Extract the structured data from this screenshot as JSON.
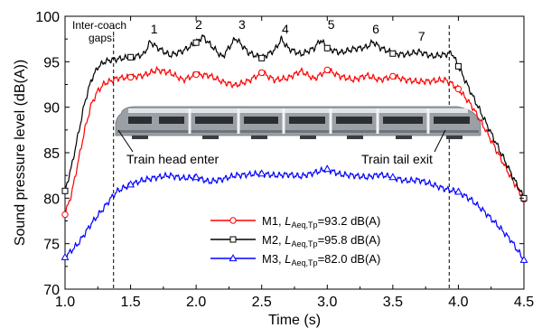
{
  "chart_data": {
    "type": "line",
    "xlabel": "Time (s)",
    "ylabel": "Sound pressure level (dB(A))",
    "xlim": [
      1.0,
      4.5
    ],
    "ylim": [
      70,
      100
    ],
    "xticks": [
      1.0,
      1.5,
      2.0,
      2.5,
      3.0,
      3.5,
      4.0,
      4.5
    ],
    "xtick_labels": [
      "1.0",
      "1.5",
      "2.0",
      "2.5",
      "3.0",
      "3.5",
      "4.0",
      "4.5"
    ],
    "yticks": [
      70,
      75,
      80,
      85,
      90,
      95,
      100
    ],
    "ytick_labels": [
      "70",
      "75",
      "80",
      "85",
      "90",
      "95",
      "100"
    ],
    "grid": false,
    "legend_position": "lower-right",
    "series": [
      {
        "name": "M1",
        "legend_label": {
          "prefix": "M1,  ",
          "symbol": "L",
          "subscript": "Aeq,Tp",
          "suffix": "=93.2 dB(A)"
        },
        "color": "#ff0000",
        "marker": "circle",
        "markers_x": [
          1.0,
          1.5,
          2.0,
          2.5,
          3.0,
          3.5,
          4.0,
          4.5
        ],
        "x": [
          1.0,
          1.05,
          1.1,
          1.15,
          1.2,
          1.25,
          1.3,
          1.35,
          1.4,
          1.5,
          1.6,
          1.7,
          1.8,
          1.9,
          2.0,
          2.1,
          2.2,
          2.3,
          2.4,
          2.5,
          2.6,
          2.7,
          2.8,
          2.9,
          3.0,
          3.1,
          3.2,
          3.3,
          3.4,
          3.5,
          3.6,
          3.7,
          3.8,
          3.9,
          3.95,
          4.0,
          4.1,
          4.2,
          4.3,
          4.4,
          4.5
        ],
        "y": [
          78.2,
          80.5,
          84.0,
          87.5,
          90.3,
          91.8,
          92.6,
          92.9,
          93.2,
          93.3,
          93.5,
          94.1,
          93.8,
          93.0,
          93.6,
          93.5,
          92.8,
          92.4,
          92.9,
          93.8,
          93.0,
          93.2,
          94.0,
          93.1,
          94.1,
          93.4,
          93.0,
          93.5,
          93.0,
          93.4,
          93.0,
          92.8,
          92.9,
          93.0,
          92.6,
          92.0,
          90.2,
          87.7,
          85.0,
          82.3,
          79.9
        ]
      },
      {
        "name": "M2",
        "legend_label": {
          "prefix": "M2,  ",
          "symbol": "L",
          "subscript": "Aeq,Tp",
          "suffix": "=95.8 dB(A)"
        },
        "color": "#000000",
        "marker": "square",
        "markers_x": [
          1.0,
          1.5,
          2.0,
          2.5,
          3.0,
          3.5,
          4.0,
          4.5
        ],
        "x": [
          1.0,
          1.05,
          1.1,
          1.15,
          1.2,
          1.25,
          1.3,
          1.35,
          1.4,
          1.5,
          1.6,
          1.65,
          1.7,
          1.8,
          1.9,
          2.0,
          2.05,
          2.1,
          2.2,
          2.3,
          2.4,
          2.5,
          2.6,
          2.65,
          2.7,
          2.8,
          2.9,
          2.95,
          3.0,
          3.1,
          3.2,
          3.3,
          3.35,
          3.4,
          3.5,
          3.6,
          3.7,
          3.8,
          3.9,
          3.95,
          4.0,
          4.1,
          4.2,
          4.3,
          4.4,
          4.5
        ],
        "y": [
          80.8,
          83.5,
          87.0,
          90.5,
          93.0,
          94.4,
          95.0,
          95.2,
          95.3,
          95.5,
          95.8,
          97.2,
          96.6,
          95.7,
          96.2,
          97.1,
          97.8,
          97.0,
          95.5,
          97.6,
          96.0,
          95.4,
          96.3,
          97.5,
          96.5,
          95.8,
          96.5,
          97.4,
          96.5,
          96.0,
          96.4,
          96.6,
          97.2,
          96.6,
          95.9,
          95.8,
          96.1,
          95.6,
          95.8,
          96.0,
          94.5,
          91.5,
          88.6,
          85.7,
          82.8,
          80.0
        ]
      },
      {
        "name": "M3",
        "legend_label": {
          "prefix": "M3,  ",
          "symbol": "L",
          "subscript": "Aeq,Tp",
          "suffix": "=82.0 dB(A)"
        },
        "color": "#0000ff",
        "marker": "triangle",
        "markers_x": [
          1.0,
          1.5,
          2.0,
          2.5,
          3.0,
          3.5,
          4.0,
          4.5
        ],
        "x": [
          1.0,
          1.1,
          1.2,
          1.3,
          1.35,
          1.4,
          1.5,
          1.6,
          1.7,
          1.8,
          1.9,
          2.0,
          2.1,
          2.2,
          2.3,
          2.4,
          2.5,
          2.6,
          2.7,
          2.8,
          2.9,
          3.0,
          3.1,
          3.2,
          3.3,
          3.4,
          3.5,
          3.6,
          3.7,
          3.8,
          3.9,
          4.0,
          4.1,
          4.2,
          4.3,
          4.4,
          4.5
        ],
        "y": [
          73.5,
          75.0,
          77.2,
          79.0,
          80.0,
          80.8,
          81.5,
          82.0,
          82.3,
          82.5,
          82.2,
          82.3,
          81.8,
          82.1,
          82.5,
          82.6,
          82.7,
          82.5,
          82.6,
          82.4,
          82.8,
          83.2,
          82.6,
          82.5,
          82.3,
          82.6,
          82.3,
          81.9,
          82.0,
          81.5,
          81.0,
          80.7,
          79.8,
          78.5,
          77.0,
          75.4,
          73.2
        ]
      }
    ],
    "vlines": [
      1.37,
      3.93
    ],
    "annotations": {
      "gaps_title_line1": "Inter-coach",
      "gaps_title_line2": "gaps:",
      "gap_labels": [
        {
          "text": "1",
          "x": 1.68,
          "y": 98.1
        },
        {
          "text": "2",
          "x": 2.02,
          "y": 98.6
        },
        {
          "text": "3",
          "x": 2.35,
          "y": 98.6
        },
        {
          "text": "4",
          "x": 2.68,
          "y": 98.1
        },
        {
          "text": "5",
          "x": 3.03,
          "y": 98.6
        },
        {
          "text": "6",
          "x": 3.37,
          "y": 98.1
        },
        {
          "text": "7",
          "x": 3.72,
          "y": 97.3
        }
      ],
      "train_head_label": "Train head enter",
      "train_tail_label": "Train tail exit"
    }
  },
  "colors": {
    "train_body": "#9aa0a6",
    "train_highlight": "#e2e5e8",
    "train_windows": "#2b2f33",
    "train_stripe": "#6e747a"
  },
  "icons": [
    "train-image"
  ]
}
